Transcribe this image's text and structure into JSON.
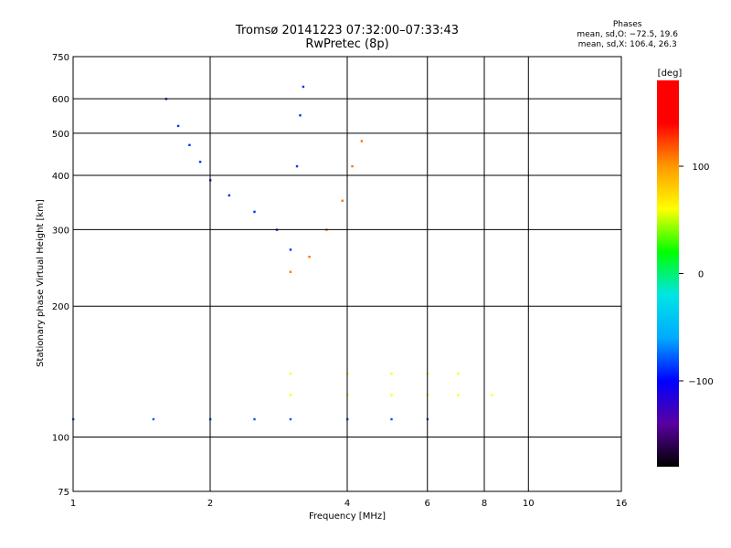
{
  "chart_data": {
    "type": "scatter",
    "title": "Tromsø 20141223 07:32:00–07:33:43",
    "subtitle": "RwPretec (8p)",
    "xlabel": "Frequency [MHz]",
    "ylabel": "Stationary phase Virtual Height [km]",
    "x_scale": "log",
    "y_scale": "log",
    "xlim": [
      1,
      16
    ],
    "ylim": [
      75,
      750
    ],
    "x_ticks": [
      1,
      2,
      4,
      6,
      8,
      10,
      16
    ],
    "y_ticks": [
      75,
      100,
      200,
      300,
      400,
      500,
      600,
      750
    ],
    "grid": true,
    "phase_stats": {
      "heading": "Phases",
      "line1": "mean, sd,O: −72.5, 19.6",
      "line2": "mean, sd,X: 106.4, 26.3"
    },
    "colorbar": {
      "unit": "[deg]",
      "range": [
        -180,
        180
      ],
      "ticks": [
        "100",
        "0",
        "−100"
      ],
      "tick_values": [
        100,
        0,
        -100
      ],
      "colors": [
        "#000000",
        "#5a00a0",
        "#0000ff",
        "#00aaff",
        "#00e5e5",
        "#00ff00",
        "#ffff00",
        "#ff9900",
        "#ff0000",
        "#ff0000"
      ]
    },
    "series": [
      {
        "role": "F-layer O trace",
        "phase": -90,
        "points": [
          [
            1.6,
            600
          ],
          [
            1.7,
            520
          ],
          [
            1.8,
            470
          ],
          [
            1.9,
            430
          ],
          [
            2.0,
            390
          ],
          [
            2.2,
            360
          ],
          [
            2.5,
            330
          ],
          [
            2.8,
            300
          ],
          [
            3.0,
            270
          ],
          [
            3.1,
            420
          ],
          [
            3.15,
            550
          ],
          [
            3.2,
            640
          ]
        ]
      },
      {
        "role": "F-layer X trace",
        "phase": 110,
        "points": [
          [
            3.0,
            240
          ],
          [
            3.3,
            260
          ],
          [
            3.6,
            300
          ],
          [
            3.9,
            350
          ],
          [
            4.1,
            420
          ],
          [
            4.3,
            480
          ]
        ]
      },
      {
        "role": "E-layer traces",
        "phase": -80,
        "points": [
          [
            1.0,
            110
          ],
          [
            1.5,
            110
          ],
          [
            2.0,
            110
          ],
          [
            2.5,
            110
          ],
          [
            3.0,
            110
          ],
          [
            4.0,
            110
          ],
          [
            5.0,
            110
          ],
          [
            6.0,
            110
          ]
        ]
      },
      {
        "role": "Es traces",
        "phase": 60,
        "points": [
          [
            3.0,
            125
          ],
          [
            4.0,
            125
          ],
          [
            5.0,
            125
          ],
          [
            6.0,
            125
          ],
          [
            7.0,
            125
          ],
          [
            8.3,
            125
          ],
          [
            3.0,
            140
          ],
          [
            4.0,
            140
          ],
          [
            5.0,
            140
          ],
          [
            6.0,
            140
          ],
          [
            7.0,
            140
          ]
        ]
      }
    ]
  }
}
